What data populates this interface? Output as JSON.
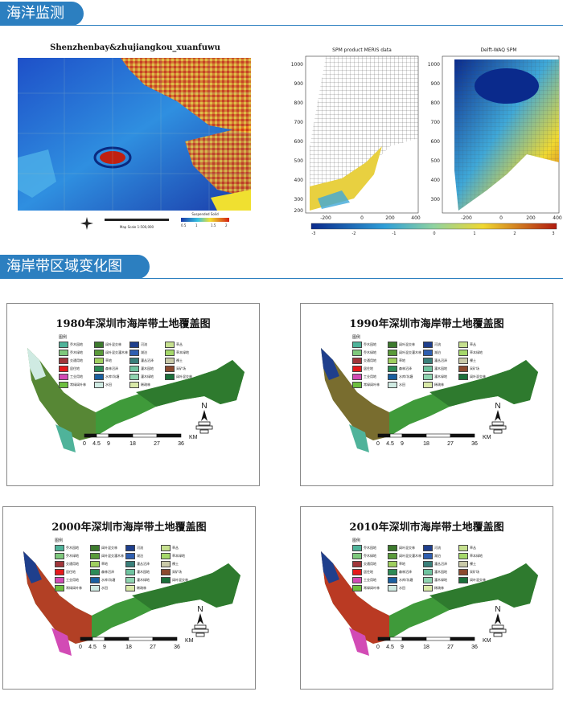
{
  "sections": {
    "ocean": "海洋监测",
    "coast": "海岸带区域变化图"
  },
  "satellite": {
    "title": "Shenzhenbay&zhujiangkou_xuanfuwu",
    "scale_label": "Map Scale 1:500,000",
    "colorbar_label": "Suspended Solid",
    "colorbar_ticks": [
      "0.5",
      "1",
      "1.5",
      "2"
    ]
  },
  "spm": {
    "left_title": "SPM product MERIS data",
    "right_title": "Delft-WAQ SPM",
    "y_ticks": [
      "1000",
      "900",
      "800",
      "700",
      "600",
      "500",
      "400",
      "300",
      "200"
    ],
    "x_ticks": [
      "-200",
      "0",
      "200",
      "400"
    ],
    "colorbar_ticks": [
      "-3",
      "-2",
      "-1",
      "0",
      "1",
      "2",
      "3"
    ]
  },
  "maps": [
    {
      "title": "1980年深圳市海岸带土地覆盖图"
    },
    {
      "title": "1990年深圳市海岸带土地覆盖图"
    },
    {
      "title": "2000年深圳市海岸带土地覆盖图"
    },
    {
      "title": "2010年深圳市海岸带土地覆盖图"
    }
  ],
  "legend": {
    "heading": "图例",
    "items": [
      {
        "label": "乔木园地",
        "color": "#4fb39a"
      },
      {
        "label": "阔叶混交林",
        "color": "#3d7a2e"
      },
      {
        "label": "河流",
        "color": "#1f3f8c"
      },
      {
        "label": "草丛",
        "color": "#c6e08f"
      },
      {
        "label": "乔木绿地",
        "color": "#7ec87c"
      },
      {
        "label": "阔叶混交灌木林",
        "color": "#5a9a3a"
      },
      {
        "label": "湖泊",
        "color": "#2f5fb0"
      },
      {
        "label": "草本绿地",
        "color": "#a5d86a"
      },
      {
        "label": "交通用地",
        "color": "#a0363a"
      },
      {
        "label": "草地",
        "color": "#9fcf5f"
      },
      {
        "label": "灌丛沼泽",
        "color": "#3a7f7a"
      },
      {
        "label": "裸土",
        "color": "#c9c9a8"
      },
      {
        "label": "居住地",
        "color": "#e41a1c"
      },
      {
        "label": "森林沼泽",
        "color": "#2e8b57"
      },
      {
        "label": "灌木园地",
        "color": "#6fc39f"
      },
      {
        "label": "采矿场",
        "color": "#8c4a2f"
      },
      {
        "label": "工业用地",
        "color": "#d24bb5"
      },
      {
        "label": "水库/坑塘",
        "color": "#1a5fa0"
      },
      {
        "label": "灌木绿地",
        "color": "#8fd4b0"
      },
      {
        "label": "阔叶混交林",
        "color": "#1a6f3a"
      },
      {
        "label": "常绿阔叶林",
        "color": "#6dbf3f"
      },
      {
        "label": "水田",
        "color": "#cfeae2"
      },
      {
        "label": "稀疏林",
        "color": "#d9e9a8"
      }
    ]
  },
  "scale": {
    "ticks": [
      "0",
      "4.5",
      "9",
      "18",
      "27",
      "36"
    ],
    "unit": "KM",
    "north": "N"
  }
}
